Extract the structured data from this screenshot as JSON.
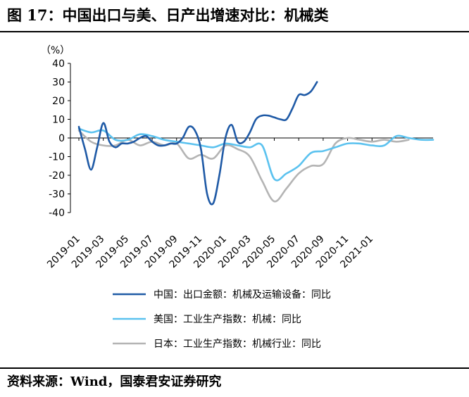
{
  "figure_title": "图 17：中国出口与美、日产出增速对比：机械类",
  "source": "资料来源：Wind，国泰君安证券研究",
  "colors": {
    "china": "#1f5aa6",
    "us": "#5bc2ef",
    "japan": "#b4b4b4"
  },
  "chart_data": {
    "type": "line",
    "title": "",
    "ylabel": "（%）",
    "xlabel": "",
    "ylim": [
      -40,
      40
    ],
    "yticks": [
      40,
      30,
      20,
      10,
      0,
      -10,
      -20,
      -30,
      -40
    ],
    "xticks": [
      "2019-01",
      "2019-03",
      "2019-05",
      "2019-07",
      "2019-09",
      "2019-11",
      "2020-01",
      "2020-03",
      "2020-05",
      "2020-07",
      "2020-09",
      "2020-11",
      "2021-01"
    ],
    "grid": false,
    "legend_position": "bottom",
    "series": [
      {
        "name": "中国：出口金额：机械及运输设备：同比",
        "key": "china",
        "x": [
          0,
          0.5,
          1,
          1.5,
          2,
          2.5,
          3,
          3.5,
          4,
          4.5,
          5,
          5.5,
          6,
          6.5,
          7,
          7.5,
          8,
          8.5,
          9,
          9.5,
          10,
          10.5,
          11,
          11.5,
          12,
          12.5,
          13,
          13.5,
          14,
          14.5,
          15,
          15.5,
          16,
          16.5,
          17,
          17.5,
          18,
          18.5,
          19,
          19.5,
          20,
          20.5,
          21,
          21.5,
          22,
          22.5,
          23,
          23.5,
          24,
          24.5,
          25
        ],
        "y": [
          6,
          -6,
          -17,
          -5,
          8,
          -2,
          -5,
          -3,
          -3,
          -2,
          0,
          1,
          -2,
          -4,
          -4,
          -3,
          -3,
          0,
          6,
          4,
          -6,
          -30,
          -35,
          -20,
          0,
          7,
          -2,
          -2,
          3,
          10,
          12,
          12,
          11,
          10,
          10,
          16,
          23,
          23,
          25,
          30,
          null,
          null,
          null,
          null,
          null,
          null,
          null,
          null,
          null,
          null,
          null
        ]
      },
      {
        "name": "美国：工业生产指数：机械：同比",
        "key": "us",
        "x": [
          0,
          1,
          2,
          3,
          4,
          5,
          6,
          7,
          8,
          9,
          10,
          11,
          12,
          13,
          14,
          15,
          16,
          17,
          18,
          19,
          20,
          21,
          22,
          23,
          24,
          25,
          26,
          27,
          28,
          29
        ],
        "y": [
          5,
          3,
          4,
          -1,
          -1,
          2,
          1,
          -1,
          -2,
          -3,
          -4,
          -5,
          -3,
          -4,
          -5,
          -4,
          -22,
          -19,
          -15,
          -8,
          -7,
          -5,
          -3,
          -3,
          -4,
          -4,
          1,
          0,
          -1,
          -1
        ]
      },
      {
        "name": "日本：工业生产指数：机械行业：同比",
        "key": "japan",
        "x": [
          0,
          1,
          2,
          3,
          4,
          5,
          6,
          7,
          8,
          9,
          10,
          11,
          12,
          13,
          14,
          15,
          16,
          17,
          18,
          19,
          20,
          21,
          22,
          23,
          24,
          25,
          26,
          27
        ],
        "y": [
          4,
          -2,
          -4,
          -4,
          -1,
          -4,
          -2,
          -4,
          -3,
          -11,
          -9,
          -11,
          -4,
          -6,
          -10,
          -23,
          -34,
          -27,
          -19,
          -15,
          -14,
          -3,
          0,
          -1,
          -2,
          -1,
          -2,
          -1
        ]
      }
    ]
  }
}
